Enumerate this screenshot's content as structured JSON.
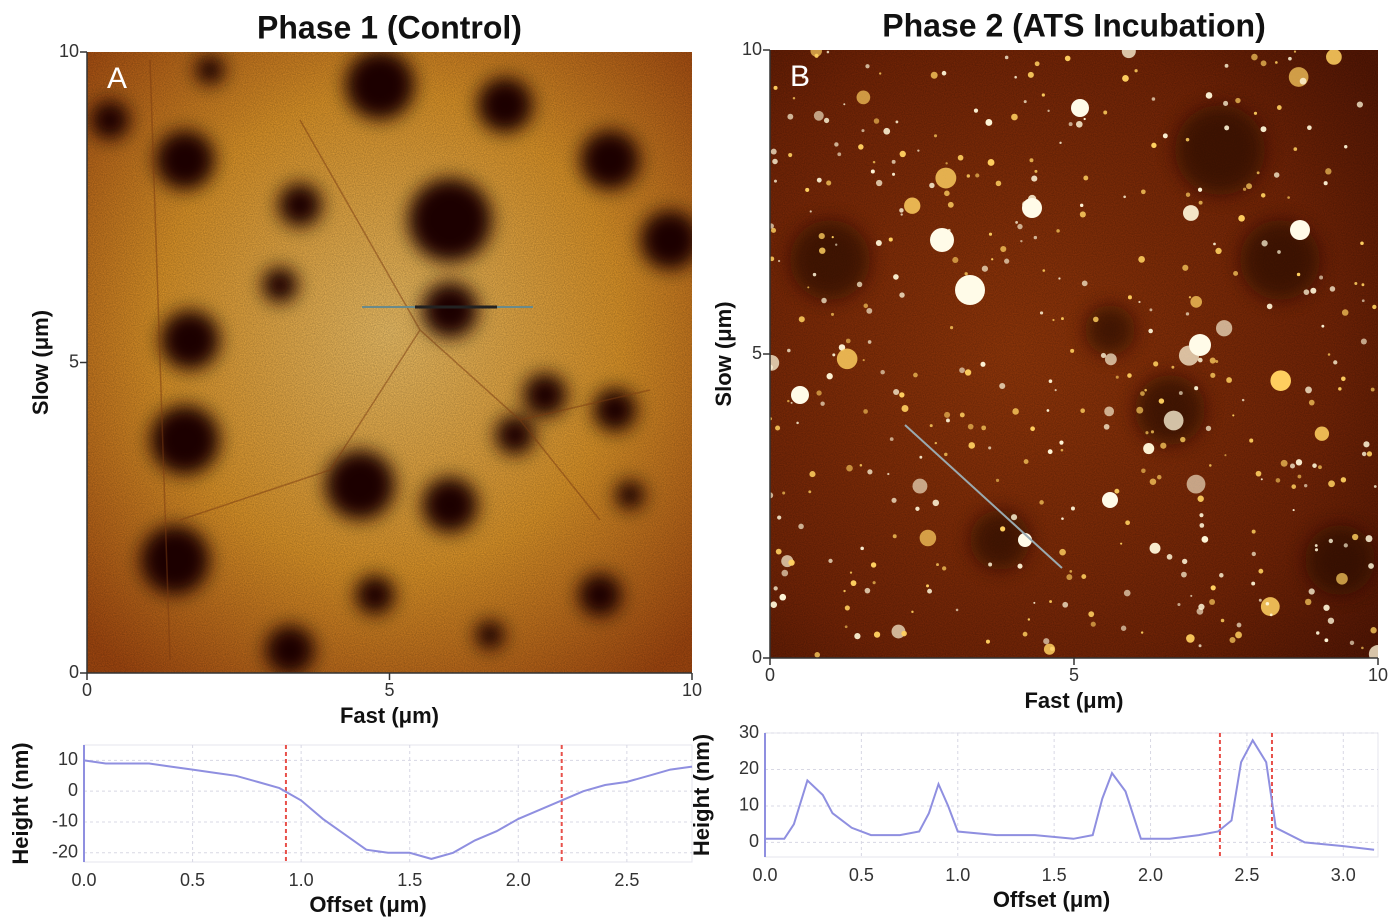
{
  "chart_data": [
    {
      "type": "image",
      "title": "Phase 1 (Control)",
      "panel_label": "A",
      "xlabel": "Fast (μm)",
      "ylabel": "Slow (μm)",
      "xlim": [
        0,
        10
      ],
      "ylim": [
        0,
        10
      ],
      "xticks": [
        0,
        5,
        10
      ],
      "yticks": [
        0,
        5,
        10
      ]
    },
    {
      "type": "image",
      "title": "Phase 2 (ATS Incubation)",
      "panel_label": "B",
      "xlabel": "Fast (μm)",
      "ylabel": "Slow (μm)",
      "xlim": [
        0,
        10
      ],
      "ylim": [
        0,
        10
      ],
      "xticks": [
        0,
        5,
        10
      ],
      "yticks": [
        0,
        5,
        10
      ]
    },
    {
      "type": "line",
      "xlabel": "Offset (μm)",
      "ylabel": "Height (nm)",
      "color": "#8f8fe0",
      "grid": true,
      "xlim": [
        0,
        2.8
      ],
      "ylim": [
        -23,
        15
      ],
      "xticks": [
        {
          "value": 0,
          "label": "0.0"
        },
        {
          "value": 0.5,
          "label": "0.5"
        },
        {
          "value": 1,
          "label": "1.0"
        },
        {
          "value": 1.5,
          "label": "1.5"
        },
        {
          "value": 2,
          "label": "2.0"
        },
        {
          "value": 2.5,
          "label": "2.5"
        }
      ],
      "yticks": [
        -20,
        -10,
        0,
        10
      ],
      "cursors": [
        0.93,
        2.2
      ],
      "cursor_color": "#e8504a",
      "x": [
        0,
        0.1,
        0.2,
        0.3,
        0.4,
        0.5,
        0.6,
        0.7,
        0.8,
        0.9,
        1.0,
        1.1,
        1.2,
        1.3,
        1.4,
        1.5,
        1.6,
        1.7,
        1.8,
        1.9,
        2.0,
        2.1,
        2.2,
        2.3,
        2.4,
        2.5,
        2.6,
        2.7,
        2.8
      ],
      "values": [
        10,
        9,
        9,
        9,
        8,
        7,
        6,
        5,
        3,
        1,
        -3,
        -9,
        -14,
        -19,
        -20,
        -20,
        -22,
        -20,
        -16,
        -13,
        -9,
        -6,
        -3,
        0,
        2,
        3,
        5,
        7,
        8
      ]
    },
    {
      "type": "line",
      "xlabel": "Offset (μm)",
      "ylabel": "Height (nm)",
      "color": "#8f8fe0",
      "grid": true,
      "xlim": [
        0,
        3.18
      ],
      "ylim": [
        -4,
        30
      ],
      "xticks": [
        {
          "value": 0,
          "label": "0.0"
        },
        {
          "value": 0.5,
          "label": "0.5"
        },
        {
          "value": 1,
          "label": "1.0"
        },
        {
          "value": 1.5,
          "label": "1.5"
        },
        {
          "value": 2,
          "label": "2.0"
        },
        {
          "value": 2.5,
          "label": "2.5"
        },
        {
          "value": 3,
          "label": "3.0"
        }
      ],
      "yticks": [
        0,
        10,
        20,
        30
      ],
      "cursors": [
        2.36,
        2.63
      ],
      "cursor_color": "#e8504a",
      "x": [
        0,
        0.1,
        0.15,
        0.22,
        0.3,
        0.35,
        0.45,
        0.55,
        0.7,
        0.8,
        0.85,
        0.9,
        0.95,
        1.0,
        1.2,
        1.4,
        1.6,
        1.7,
        1.75,
        1.8,
        1.87,
        1.95,
        2.1,
        2.25,
        2.35,
        2.42,
        2.47,
        2.53,
        2.6,
        2.65,
        2.8,
        3.0,
        3.16
      ],
      "values": [
        1,
        1,
        5,
        17,
        13,
        8,
        4,
        2,
        2,
        3,
        8,
        16,
        10,
        3,
        2,
        2,
        1,
        2,
        12,
        19,
        14,
        1,
        1,
        2,
        3,
        6,
        22,
        28,
        22,
        4,
        0,
        -1,
        -2
      ]
    }
  ]
}
